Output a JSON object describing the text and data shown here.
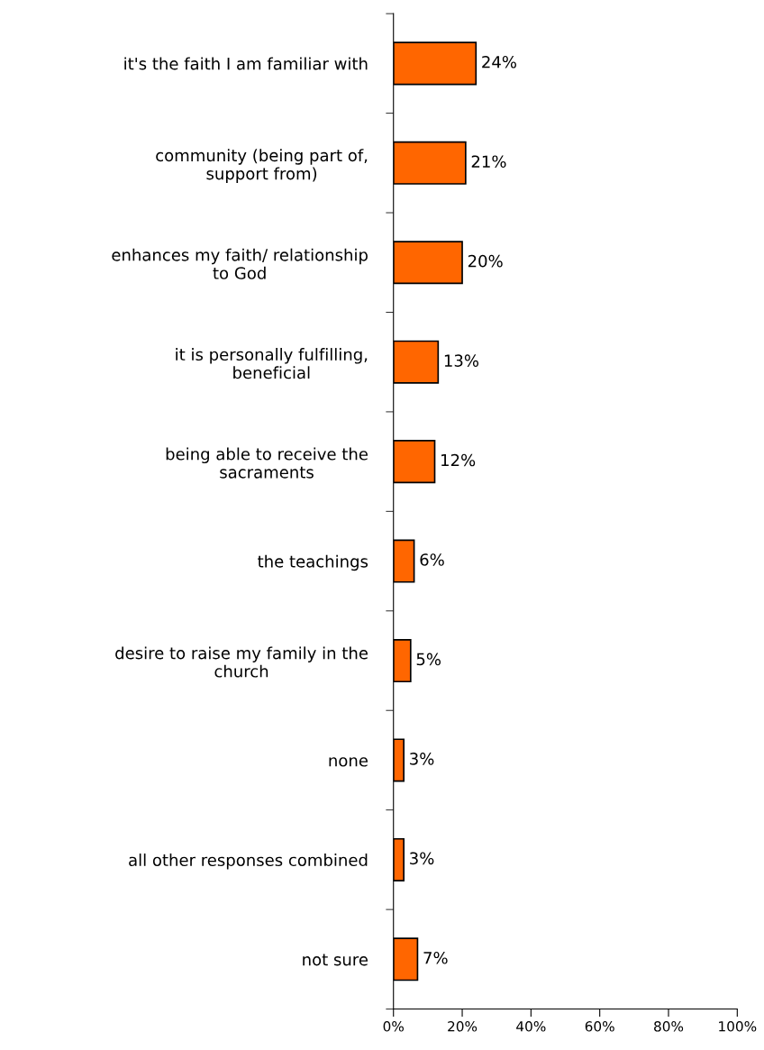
{
  "chart_data": {
    "type": "bar",
    "orientation": "horizontal",
    "categories": [
      "it's the faith I am familiar with",
      "community (being part of,\nsupport from)",
      "enhances my faith/ relationship\nto God",
      "it is personally fulfilling,\nbeneficial",
      "being able to receive the\nsacraments",
      "the teachings",
      "desire to raise my family in the\nchurch",
      "none",
      "all other responses combined",
      "not sure"
    ],
    "values": [
      24,
      21,
      20,
      13,
      12,
      6,
      5,
      3,
      3,
      7
    ],
    "value_labels": [
      "24%",
      "21%",
      "20%",
      "13%",
      "12%",
      "6%",
      "5%",
      "3%",
      "3%",
      "7%"
    ],
    "color": "#ff6600",
    "xlim": [
      0,
      100
    ],
    "xticks": [
      {
        "value": 0,
        "label": "0%"
      },
      {
        "value": 20,
        "label": "20%"
      },
      {
        "value": 40,
        "label": "40%"
      },
      {
        "value": 60,
        "label": "60%"
      },
      {
        "value": 80,
        "label": "80%"
      },
      {
        "value": 100,
        "label": "100%"
      }
    ],
    "grid": false,
    "legend": false
  }
}
